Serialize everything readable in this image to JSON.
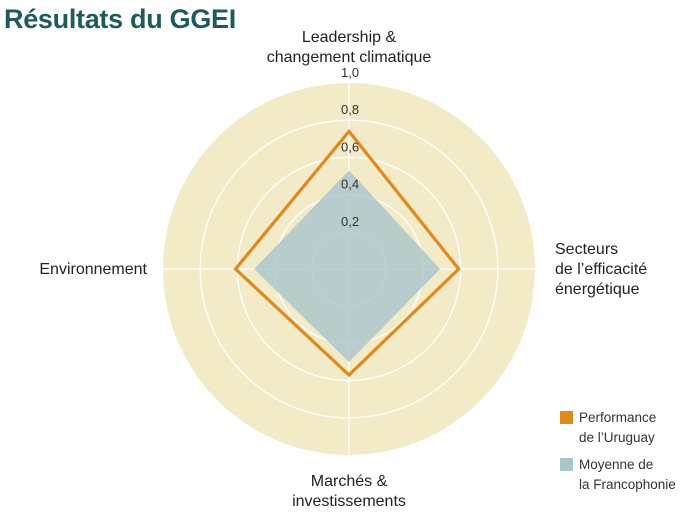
{
  "title": "Résultats du GGEI",
  "colors": {
    "background_disc": "#f3ebc7",
    "grid_line": "#ffffff",
    "uruguay": "#e08a1e",
    "francophonie": "#a9c6cc",
    "title": "#1f5a5c"
  },
  "chart_data": {
    "type": "radar",
    "title": "Résultats du GGEI",
    "axes": [
      [
        "Leadership &",
        "changement climatique"
      ],
      [
        "Secteurs",
        "de l’efficacité",
        "énergétique"
      ],
      [
        "Marchés &",
        "investissements"
      ],
      [
        "Environnement"
      ]
    ],
    "rlim": [
      0,
      1.0
    ],
    "ticks": [
      0.2,
      0.4,
      0.6,
      0.8,
      1.0
    ],
    "tick_labels": [
      "0,2",
      "0,4",
      "0,6",
      "0,8",
      "1,0"
    ],
    "series": [
      {
        "name": [
          "Performance",
          "de l’Uruguay"
        ],
        "values": [
          0.74,
          0.59,
          0.57,
          0.61
        ],
        "style": "outline"
      },
      {
        "name": [
          "Moyenne de",
          "la Francophonie"
        ],
        "values": [
          0.53,
          0.49,
          0.5,
          0.51
        ],
        "style": "fill"
      }
    ],
    "legend": "bottom-right",
    "grid": true
  }
}
